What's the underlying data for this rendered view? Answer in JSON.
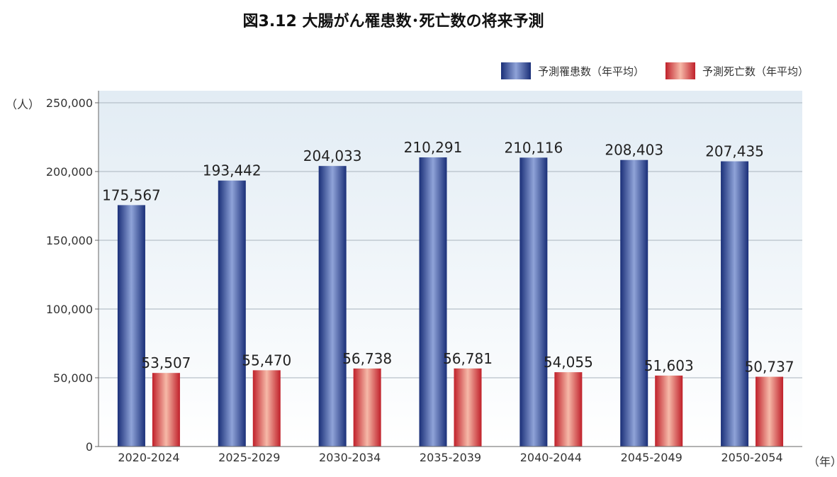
{
  "title": "図3.12 大腸がん罹患数･死亡数の将来予測",
  "y_unit": "（人）",
  "x_unit": "（年）",
  "colors": {
    "incidence": "#1a2f78",
    "incidence_highlight": "#8fa3d8",
    "mortality": "#c0202a",
    "mortality_highlight": "#f6b9a8",
    "plot_bg_top": "#e2ecf4",
    "plot_bg_bottom": "#ffffff"
  },
  "chart_data": {
    "type": "bar",
    "categories": [
      "2020-2024",
      "2025-2029",
      "2030-2034",
      "2035-2039",
      "2040-2044",
      "2045-2049",
      "2050-2054"
    ],
    "series": [
      {
        "name": "予測罹患数（年平均）",
        "values": [
          175567,
          193442,
          204033,
          210291,
          210116,
          208403,
          207435
        ],
        "labels": [
          "175,567",
          "193,442",
          "204,033",
          "210,291",
          "210,116",
          "208,403",
          "207,435"
        ]
      },
      {
        "name": "予測死亡数（年平均）",
        "values": [
          53507,
          55470,
          56738,
          56781,
          54055,
          51603,
          50737
        ],
        "labels": [
          "53,507",
          "55,470",
          "56,738",
          "56,781",
          "54,055",
          "51,603",
          "50,737"
        ]
      }
    ],
    "ylim": [
      0,
      250000
    ],
    "yticks": [
      0,
      50000,
      100000,
      150000,
      200000,
      250000
    ],
    "ytick_labels": [
      "0",
      "50,000",
      "100,000",
      "150,000",
      "200,000",
      "250,000"
    ],
    "grid": true,
    "legend_position": "top-right"
  }
}
